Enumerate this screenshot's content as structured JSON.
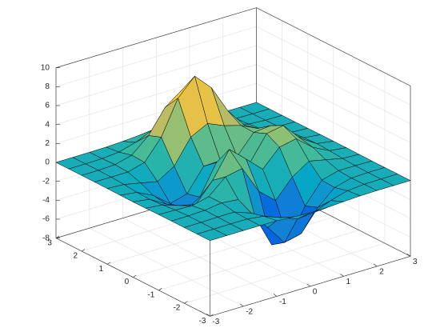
{
  "chart_data": {
    "type": "surface",
    "x": [
      -3,
      -2.5,
      -2,
      -1.5,
      -1,
      -0.5,
      0,
      0.5,
      1,
      1.5,
      2,
      2.5,
      3
    ],
    "y": [
      -3,
      -2.5,
      -2,
      -1.5,
      -1,
      -0.5,
      0,
      0.5,
      1,
      1.5,
      2,
      2.5,
      3
    ],
    "z": [
      [
        0,
        0,
        0,
        0,
        -0.03,
        -0.14,
        -0.24,
        -0.22,
        -0.11,
        -0.03,
        0,
        0,
        0
      ],
      [
        0,
        0,
        0.01,
        0,
        -0.23,
        -0.91,
        -1.57,
        -1.41,
        -0.69,
        -0.18,
        -0.03,
        0,
        0
      ],
      [
        0,
        0.01,
        0.05,
        0.05,
        -0.59,
        -2.64,
        -4.75,
        -4.34,
        -2.1,
        -0.53,
        -0.06,
        0,
        0
      ],
      [
        0,
        0.01,
        0.08,
        0.33,
        0.15,
        -2.19,
        -5.68,
        -5.76,
        -2.64,
        -0.44,
        0.04,
        0.03,
        0
      ],
      [
        -0.01,
        -0.06,
        -0.13,
        0.3,
        1.86,
        2.22,
        -0.72,
        -2.22,
        -0.27,
        0.88,
        0.5,
        0.11,
        0.01
      ],
      [
        -0.03,
        -0.2,
        -0.8,
        -1.21,
        0.8,
        3.55,
        2,
        0.39,
        2.2,
        2.56,
        1.12,
        0.24,
        0.03
      ],
      [
        -0.04,
        -0.3,
        -1.33,
        -2.77,
        -1.65,
        1.48,
        0.98,
        0.37,
        2.94,
        3.27,
        1.41,
        0.3,
        0.03
      ],
      [
        -0.03,
        -0.25,
        -1.12,
        -2.49,
        -2,
        0.39,
        0.46,
        0.38,
        2.38,
        2.56,
        1.09,
        0.23,
        0.03
      ],
      [
        -0.01,
        -0.11,
        -0.48,
        -0.86,
        0.23,
        2.79,
        3.69,
        2.93,
        2.43,
        1.58,
        0.58,
        0.11,
        0.01
      ],
      [
        0,
        -0.02,
        -0.01,
        0.48,
        2.61,
        6.2,
        8,
        6.25,
        3.25,
        1.19,
        0.29,
        0.05,
        0
      ],
      [
        0,
        0.01,
        0.08,
        0.55,
        2.1,
        4.55,
        5.85,
        4.56,
        2.21,
        0.68,
        0.13,
        0.02,
        0
      ],
      [
        0,
        0,
        0.03,
        0.19,
        0.69,
        1.47,
        1.88,
        1.47,
        0.7,
        0.21,
        0.04,
        0,
        0
      ],
      [
        0,
        0,
        0.01,
        0.03,
        0.11,
        0.23,
        0.3,
        0.23,
        0.11,
        0.03,
        0.01,
        0,
        0
      ]
    ],
    "xlim": [
      -3,
      3
    ],
    "ylim": [
      -3,
      3
    ],
    "zlim": [
      -8,
      10
    ],
    "xticks": [
      -3,
      -2,
      -1,
      0,
      1,
      2,
      3
    ],
    "yticks": [
      -3,
      -2,
      -1,
      0,
      1,
      2,
      3
    ],
    "zticks": [
      -8,
      -6,
      -4,
      -2,
      0,
      2,
      4,
      6,
      8,
      10
    ],
    "grid": true,
    "colormap": "parula",
    "edgecolor": "#000000"
  }
}
